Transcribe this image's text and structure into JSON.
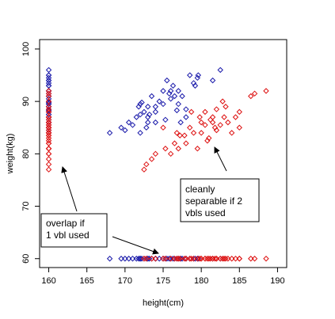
{
  "chart_data": {
    "type": "scatter",
    "x_label": "height(cm)",
    "y_label": "weight(kg)",
    "xlim": [
      158.8,
      191.2
    ],
    "ylim": [
      58.3,
      101.8
    ],
    "xticks": [
      160,
      165,
      170,
      175,
      180,
      185,
      190
    ],
    "yticks": [
      60,
      70,
      80,
      90,
      100
    ],
    "projection_x": 160,
    "projection_y": 60,
    "series": [
      {
        "color": "#1a1aaa",
        "x": [
          168,
          170,
          170.5,
          171,
          171.5,
          172,
          172,
          172.2,
          172.5,
          173,
          173,
          173.5,
          173.2,
          174,
          174.5,
          175,
          175,
          175.5,
          175.8,
          176,
          176,
          176.3,
          176.5,
          177,
          177,
          177.5,
          178,
          178.5,
          179,
          179.2,
          179.5,
          179.6,
          178,
          174,
          172.8,
          172,
          181.5,
          182.5,
          177.3,
          175.3,
          173,
          174,
          176.8,
          171.8,
          169.5
        ],
        "y": [
          84,
          84.5,
          86,
          85.5,
          87,
          87.5,
          89.5,
          89.8,
          88,
          87,
          86,
          91,
          87.5,
          89,
          90,
          89.5,
          92,
          94,
          91.5,
          92,
          90.5,
          93,
          91,
          92,
          89.5,
          91,
          88.5,
          95,
          93.5,
          93,
          94.5,
          95,
          87,
          86,
          85,
          84,
          94,
          96,
          86,
          86.5,
          89,
          88,
          88.3,
          89,
          85
        ]
      },
      {
        "color": "#dd1111",
        "x": [
          172.5,
          172.8,
          173.5,
          174,
          175,
          175.3,
          176,
          176.5,
          177,
          177.2,
          177.8,
          178,
          178.5,
          178.7,
          179,
          179.5,
          180,
          180,
          180.5,
          181,
          181.2,
          181.5,
          181.5,
          182,
          182,
          182.5,
          183,
          183.2,
          183.5,
          184,
          184.5,
          185,
          185,
          186.5,
          187,
          188.5,
          180.5,
          179.8,
          181.8,
          182.8,
          176.8,
          180.8
        ],
        "y": [
          77,
          78,
          79,
          80,
          85,
          81,
          80,
          82,
          81,
          83.5,
          83.5,
          82,
          85,
          88,
          84,
          81,
          84,
          86,
          85.5,
          83,
          86.5,
          87,
          86,
          88.5,
          84.5,
          85.5,
          87,
          89,
          86,
          84,
          87,
          88,
          85,
          91,
          91.5,
          92,
          88,
          87,
          85,
          90,
          84,
          82.5
        ]
      }
    ],
    "annotations": [
      {
        "lines": [
          "cleanly",
          "separable if 2",
          "vbls used"
        ]
      },
      {
        "lines": [
          "overlap if",
          "1 vbl used"
        ]
      }
    ]
  }
}
